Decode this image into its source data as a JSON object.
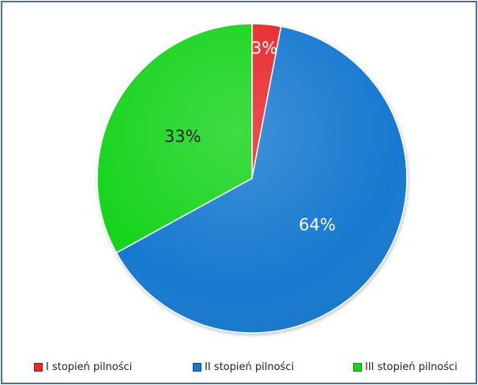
{
  "chart_data": {
    "type": "pie",
    "categories": [
      "I stopień pilności",
      "II stopień pilności",
      "III stopień pilności"
    ],
    "values": [
      3,
      64,
      33
    ],
    "labels": [
      "3%",
      "64%",
      "33%"
    ],
    "colors": [
      "#e8262b",
      "#1679cf",
      "#19d41a"
    ],
    "label_colors": [
      "#ffffff",
      "#ffffff",
      "#222222"
    ],
    "start_angle_deg": 0,
    "direction": "clockwise",
    "legend_position": "bottom",
    "title": ""
  }
}
